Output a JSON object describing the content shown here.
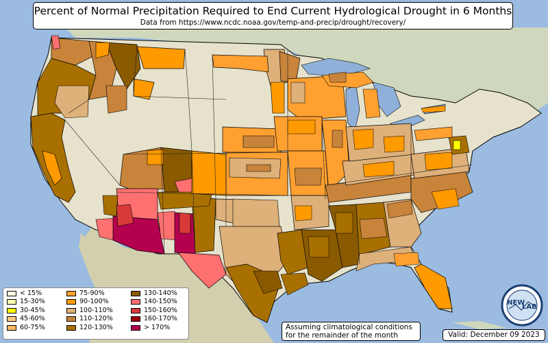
{
  "title": "Percent of Normal Precipitation Required to End Current Hydrological Drought in 6 Months",
  "subtitle": "Data from https://www.ncdc.noaa.gov/temp-and-precip/drought/recovery/",
  "note": {
    "line1": "Assuming climatological conditions",
    "line2": "for the remainder of the month"
  },
  "valid": "Valid: December 09 2023",
  "logo": {
    "text_left": "NEW",
    "text_right": "LAB"
  },
  "legend": [
    {
      "label": "< 15%",
      "color": "#ffffe0"
    },
    {
      "label": "15-30%",
      "color": "#ffffb0"
    },
    {
      "label": "30-45%",
      "color": "#ffff00"
    },
    {
      "label": "45-60%",
      "color": "#ffcc80"
    },
    {
      "label": "60-75%",
      "color": "#ffb860"
    },
    {
      "label": "75-90%",
      "color": "#ffa030"
    },
    {
      "label": "90-100%",
      "color": "#ff9a00"
    },
    {
      "label": "100-110%",
      "color": "#deb07a"
    },
    {
      "label": "110-120%",
      "color": "#c8843a"
    },
    {
      "label": "120-130%",
      "color": "#a87000"
    },
    {
      "label": "130-140%",
      "color": "#8a5a00"
    },
    {
      "label": "140-150%",
      "color": "#ff7070"
    },
    {
      "label": "150-160%",
      "color": "#d83a3a"
    },
    {
      "label": "160-170%",
      "color": "#a00000"
    },
    {
      "label": "> 170%",
      "color": "#b4004e"
    }
  ],
  "colors": {
    "ocean": "#9bbbe0",
    "land_us": "#e6e2cc",
    "land_other": "#cfd8bc",
    "lakes": "#8fb0d8"
  }
}
